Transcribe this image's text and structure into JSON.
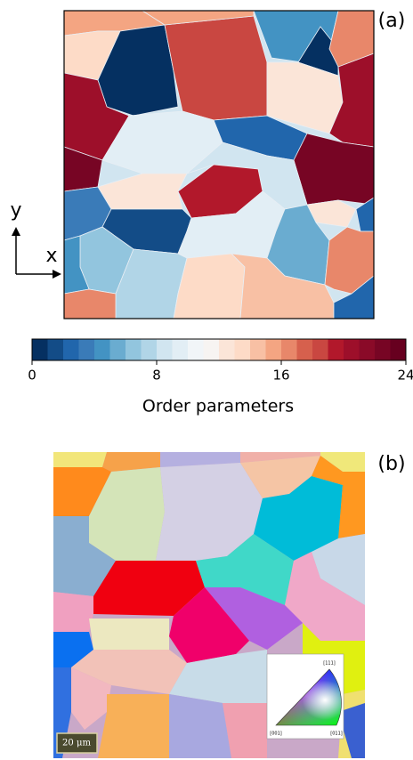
{
  "panel_a": {
    "label": "(a)",
    "axes": {
      "y": "y",
      "x": "x"
    },
    "colorbar": {
      "lim": [
        0,
        24
      ],
      "ticks": [
        0,
        8,
        16,
        24
      ],
      "label": "Order parameters",
      "colors": [
        "#053061",
        "#134c87",
        "#2166ac",
        "#3a7bb8",
        "#4393c3",
        "#6aacd0",
        "#92c5de",
        "#b1d5e7",
        "#d1e5f0",
        "#e2eef5",
        "#f1f5f8",
        "#f7f4f2",
        "#fbe5d8",
        "#fddbc7",
        "#f8c0a4",
        "#f4a582",
        "#e8876a",
        "#d6604d",
        "#c94741",
        "#b2182b",
        "#9d0f2a",
        "#8a0a28",
        "#770524",
        "#67001f"
      ]
    }
  },
  "panel_b": {
    "label": "(b)",
    "scale_bar": "20 μm",
    "ipf_key": {
      "labels": [
        "[001]",
        "[011]",
        "[111]"
      ]
    }
  }
}
